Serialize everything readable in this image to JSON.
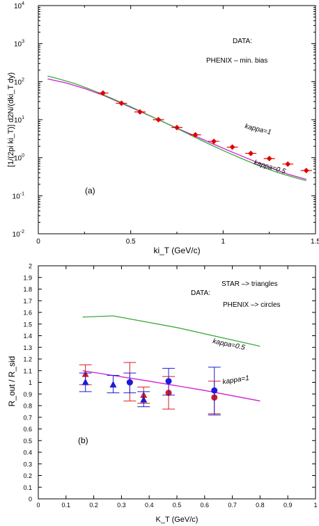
{
  "chart_data": [
    {
      "type": "line",
      "panel_label": "(a)",
      "xlabel": "ki_T (GeV/c)",
      "ylabel": "[1/(2pi ki_T)] d2N/(dki_T dy)",
      "xlim": [
        0,
        1.5
      ],
      "ylim": [
        0.01,
        10000
      ],
      "yscale": "log",
      "grid": false,
      "x_ticks": [
        "0",
        "0.5",
        "1",
        "1.5"
      ],
      "y_tick_exponents": [
        "-2",
        "-1",
        "0",
        "1",
        "2",
        "3",
        "4"
      ],
      "annotations": [
        "DATA:",
        "PHENIX – min. bias"
      ],
      "series": [
        {
          "name": "kappa=1",
          "color": "#d01bd0",
          "x": [
            0.05,
            0.15,
            0.25,
            0.35,
            0.45,
            0.55,
            0.65,
            0.75,
            0.85,
            0.95,
            1.05,
            1.15,
            1.25,
            1.35,
            1.45
          ],
          "y": [
            118,
            92,
            66,
            44,
            27,
            16.5,
            10,
            6,
            3.7,
            2.25,
            1.4,
            0.88,
            0.56,
            0.37,
            0.27
          ]
        },
        {
          "name": "kappa=0.5",
          "color": "#3aaa3a",
          "x": [
            0.05,
            0.1,
            0.2,
            0.3,
            0.4,
            0.5,
            0.6,
            0.7,
            0.8,
            0.9,
            1.0,
            1.1,
            1.2,
            1.3,
            1.4,
            1.45
          ],
          "y": [
            140,
            122,
            88,
            58,
            36,
            22,
            13,
            7.7,
            4.5,
            2.6,
            1.55,
            0.95,
            0.6,
            0.4,
            0.29,
            0.25
          ]
        },
        {
          "name": "PHENIX data",
          "type": "scatter",
          "color": "#e00000",
          "x": [
            0.35,
            0.45,
            0.55,
            0.65,
            0.75,
            0.85,
            0.95,
            1.05,
            1.15,
            1.25,
            1.35,
            1.45
          ],
          "y": [
            50,
            27,
            16,
            10,
            6.2,
            4.0,
            2.7,
            1.9,
            1.3,
            0.95,
            0.68,
            0.46
          ]
        }
      ]
    },
    {
      "type": "line",
      "panel_label": "(b)",
      "xlabel": "K_T (GeV/c)",
      "ylabel": "R_out / R_sid",
      "xlim": [
        0,
        1
      ],
      "ylim": [
        0,
        2
      ],
      "grid": false,
      "x_ticks": [
        "0",
        "0.1",
        "0.2",
        "0.3",
        "0.4",
        "0.5",
        "0.6",
        "0.7",
        "0.8",
        "0.9",
        "1"
      ],
      "y_ticks": [
        "0",
        "0.1",
        "0.2",
        "0.3",
        "0.4",
        "0.5",
        "0.6",
        "0.7",
        "0.8",
        "0.9",
        "1",
        "1.1",
        "1.2",
        "1.3",
        "1.4",
        "1.5",
        "1.6",
        "1.7",
        "1.8",
        "1.9",
        "2"
      ],
      "annotations": [
        "STAR –> triangles",
        "DATA:",
        "PHENIX –> circles"
      ],
      "series": [
        {
          "name": "kappa=0.5",
          "color": "#3aaa3a",
          "x": [
            0.16,
            0.27,
            0.5,
            0.8
          ],
          "y": [
            1.56,
            1.57,
            1.47,
            1.31
          ]
        },
        {
          "name": "kappa=1",
          "color": "#d01bd0",
          "x": [
            0.16,
            0.4,
            0.6,
            0.8
          ],
          "y": [
            1.1,
            1.01,
            0.93,
            0.84
          ]
        },
        {
          "name": "STAR red",
          "type": "scatter",
          "marker": "triangle",
          "color": "#d81c1c",
          "x": [
            0.17,
            0.38
          ],
          "y": [
            1.07,
            0.89
          ],
          "y_low": [
            0.98,
            0.82
          ],
          "y_high": [
            1.15,
            0.96
          ]
        },
        {
          "name": "STAR blue",
          "type": "scatter",
          "marker": "triangle",
          "color": "#1c1cd8",
          "x": [
            0.17,
            0.27,
            0.38
          ],
          "y": [
            1.0,
            0.98,
            0.85
          ],
          "y_low": [
            0.92,
            0.91,
            0.79
          ],
          "y_high": [
            1.08,
            1.06,
            0.92
          ]
        },
        {
          "name": "PHENIX red",
          "type": "scatter",
          "marker": "circle",
          "color": "#d81c1c",
          "x": [
            0.33,
            0.47,
            0.635
          ],
          "y": [
            1.0,
            0.91,
            0.87
          ],
          "y_low": [
            0.84,
            0.77,
            0.73
          ],
          "y_high": [
            1.17,
            1.05,
            1.01
          ]
        },
        {
          "name": "PHENIX blue",
          "type": "scatter",
          "marker": "circle",
          "color": "#1c1cd8",
          "x": [
            0.33,
            0.47,
            0.635
          ],
          "y": [
            1.0,
            1.01,
            0.93
          ],
          "y_low": [
            0.91,
            0.89,
            0.72
          ],
          "y_high": [
            1.08,
            1.12,
            1.13
          ]
        }
      ]
    }
  ]
}
